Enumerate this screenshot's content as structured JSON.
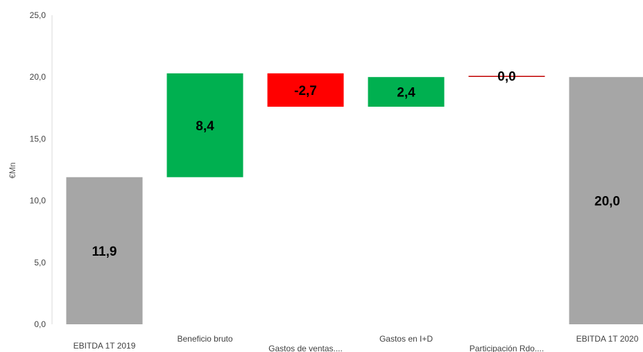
{
  "chart_data": {
    "type": "bar",
    "subtype": "waterfall",
    "ylabel": "€Mn",
    "ylim": [
      0,
      25
    ],
    "yticks": [
      "0,0",
      "5,0",
      "10,0",
      "15,0",
      "20,0",
      "25,0"
    ],
    "grid": false,
    "legend": "none",
    "categories": [
      "EBITDA 1T 2019",
      "Beneficio bruto",
      "Gastos de ventas....",
      "Gastos en I+D",
      "Participación Rdo....",
      "EBITDA 1T 2020"
    ],
    "bars": [
      {
        "kind": "total",
        "start": 0,
        "end": 11.9,
        "label": "11,9",
        "color": "#a6a6a6"
      },
      {
        "kind": "increase",
        "start": 11.9,
        "end": 20.3,
        "label": "8,4",
        "color": "#00b050"
      },
      {
        "kind": "decrease",
        "start": 20.3,
        "end": 17.6,
        "label": "-2,7",
        "color": "#ff0000"
      },
      {
        "kind": "increase",
        "start": 17.6,
        "end": 20.0,
        "label": "2,4",
        "color": "#00b050"
      },
      {
        "kind": "zero",
        "start": 20.05,
        "end": 20.05,
        "label": "0,0",
        "color": "#c00000"
      },
      {
        "kind": "total",
        "start": 0,
        "end": 20.0,
        "label": "20,0",
        "color": "#a6a6a6"
      }
    ]
  }
}
